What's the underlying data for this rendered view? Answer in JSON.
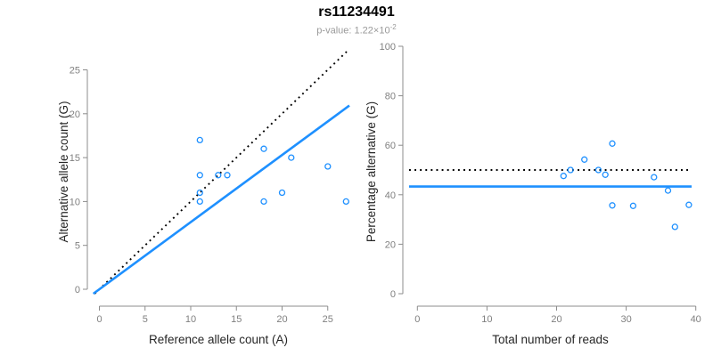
{
  "header": {
    "title": "rs11234491",
    "pvalue_text": "p-value: 1.22×10",
    "pvalue_exponent": "-2"
  },
  "colors": {
    "accent_blue": "#1E90FF",
    "dotted_line": "#000000",
    "axis_line": "#8C8C8C",
    "tick_label": "#808080",
    "axis_title": "#262626",
    "subtitle_gray": "#9A9A9A"
  },
  "chart_data": [
    {
      "type": "scatter",
      "panel": "left",
      "xlabel": "Reference allele count (A)",
      "ylabel": "Alternative allele count (G)",
      "xticks": [
        0,
        5,
        10,
        15,
        20,
        25
      ],
      "yticks": [
        0,
        5,
        10,
        15,
        20,
        25
      ],
      "xlim": [
        -1.3,
        27.4
      ],
      "ylim": [
        -0.5,
        27.3
      ],
      "grid": false,
      "legend": false,
      "points": [
        [
          11,
          17
        ],
        [
          18,
          16
        ],
        [
          21,
          15
        ],
        [
          25,
          14
        ],
        [
          11,
          13
        ],
        [
          13,
          13
        ],
        [
          14,
          13
        ],
        [
          11,
          11
        ],
        [
          20,
          11
        ],
        [
          11,
          10
        ],
        [
          18,
          10
        ],
        [
          27,
          10
        ]
      ],
      "lines": [
        {
          "name": "identity-line",
          "style": "dotted",
          "color": "#000000",
          "slope": 1,
          "intercept": 0
        },
        {
          "name": "expected-ratio-line",
          "style": "solid",
          "color": "#1E90FF",
          "slope": 0.765,
          "intercept": 0
        }
      ]
    },
    {
      "type": "scatter",
      "panel": "right",
      "xlabel": "Total number of reads",
      "ylabel": "Percentage alternative (G)",
      "xticks": [
        0,
        10,
        20,
        30,
        40
      ],
      "yticks": [
        0,
        20,
        40,
        60,
        80,
        100
      ],
      "xlim": [
        -1.6,
        40.9
      ],
      "ylim": [
        -5,
        104
      ],
      "grid": false,
      "legend": false,
      "points": [
        [
          21,
          47.6
        ],
        [
          22,
          50.0
        ],
        [
          24,
          54.2
        ],
        [
          26,
          50.0
        ],
        [
          27,
          48.1
        ],
        [
          28,
          60.7
        ],
        [
          28,
          35.7
        ],
        [
          31,
          35.5
        ],
        [
          34,
          47.1
        ],
        [
          36,
          41.7
        ],
        [
          37,
          27.0
        ],
        [
          39,
          35.9
        ]
      ],
      "lines": [
        {
          "name": "fifty-percent-line",
          "style": "dotted",
          "color": "#000000",
          "slope": 0,
          "intercept": 50
        },
        {
          "name": "overall-percentage-line",
          "style": "solid",
          "color": "#1E90FF",
          "slope": 0,
          "intercept": 43.3
        }
      ]
    }
  ]
}
